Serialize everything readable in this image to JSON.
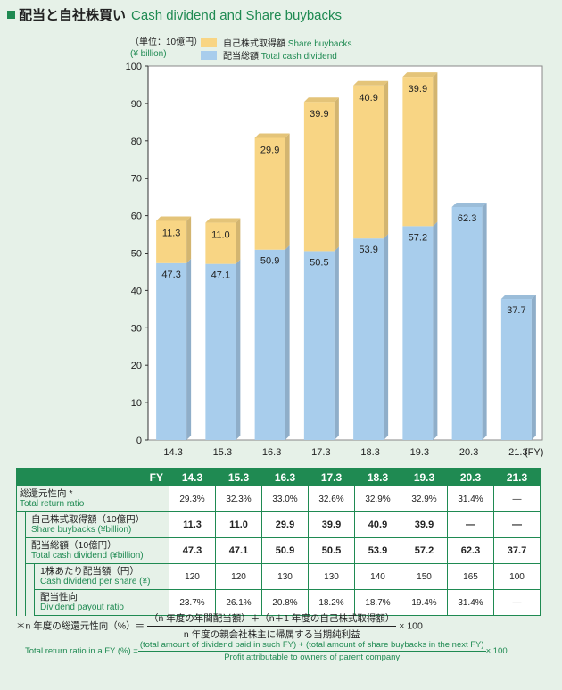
{
  "title": {
    "jp": "配当と自社株買い",
    "en": "Cash dividend and Share buybacks"
  },
  "unit": {
    "jp": "（単位：10億円）",
    "en": "(¥ billion)"
  },
  "fy_suffix": "(FY)",
  "colors": {
    "buyback": "#f8d584",
    "dividend": "#a8cdec",
    "header": "#1f8a52",
    "plot_bg": "#ffffff",
    "page_bg": "#e6f1e8"
  },
  "chart_data": {
    "type": "bar",
    "stacked": true,
    "categories": [
      "14.3",
      "15.3",
      "16.3",
      "17.3",
      "18.3",
      "19.3",
      "20.3",
      "21.3"
    ],
    "series": [
      {
        "name": "配当総額 Total cash dividend",
        "name_jp": "配当総額",
        "name_en": "Total cash dividend",
        "values": [
          47.3,
          47.1,
          50.9,
          50.5,
          53.9,
          57.2,
          62.3,
          37.7
        ]
      },
      {
        "name": "自己株式取得額 Share buybacks",
        "name_jp": "自己株式取得額",
        "name_en": "Share buybacks",
        "values": [
          11.3,
          11.0,
          29.9,
          39.9,
          40.9,
          39.9,
          null,
          null
        ]
      }
    ],
    "ylim": [
      0,
      100
    ],
    "yticks": [
      0,
      10,
      20,
      30,
      40,
      50,
      60,
      70,
      80,
      90,
      100
    ],
    "legend_position": "top-left",
    "grid": false
  },
  "table": {
    "header_label": "FY",
    "years": [
      "14.3",
      "15.3",
      "16.3",
      "17.3",
      "18.3",
      "19.3",
      "20.3",
      "21.3"
    ],
    "rows": [
      {
        "jp": "総還元性向 *",
        "en": "Total return ratio",
        "level": 0,
        "bold": false,
        "values": [
          "29.3%",
          "32.3%",
          "33.0%",
          "32.6%",
          "32.9%",
          "32.9%",
          "31.4%",
          "—"
        ]
      },
      {
        "jp": "自己株式取得額（10億円）",
        "en": "Share buybacks (¥billion)",
        "level": 1,
        "bold": true,
        "values": [
          "11.3",
          "11.0",
          "29.9",
          "39.9",
          "40.9",
          "39.9",
          "—",
          "—"
        ]
      },
      {
        "jp": "配当総額（10億円）",
        "en": "Total cash dividend (¥billion)",
        "level": 1,
        "bold": true,
        "values": [
          "47.3",
          "47.1",
          "50.9",
          "50.5",
          "53.9",
          "57.2",
          "62.3",
          "37.7"
        ]
      },
      {
        "jp": "1株あたり配当額（円）",
        "en": "Cash dividend per share (¥)",
        "level": 2,
        "bold": false,
        "values": [
          "120",
          "120",
          "130",
          "130",
          "140",
          "150",
          "165",
          "100"
        ]
      },
      {
        "jp": "配当性向",
        "en": "Dividend payout ratio",
        "level": 2,
        "bold": false,
        "values": [
          "23.7%",
          "26.1%",
          "20.8%",
          "18.2%",
          "18.7%",
          "19.4%",
          "31.4%",
          "—"
        ]
      }
    ]
  },
  "footnote_jp": {
    "lead": "＊n 年度の総還元性向（%）＝",
    "num": "（n 年度の年間配当額）＋（n＋1 年度の自己株式取得額）",
    "den": "n 年度の親会社株主に帰属する当期純利益",
    "tail": "× 100"
  },
  "footnote_en": {
    "lead": "Total return ratio in a FY (%) =",
    "num": "(total amount of dividend paid in such FY) + (total amount of share buybacks in the next FY)",
    "den": "Profit attributable to owners of parent company",
    "tail": "× 100"
  }
}
